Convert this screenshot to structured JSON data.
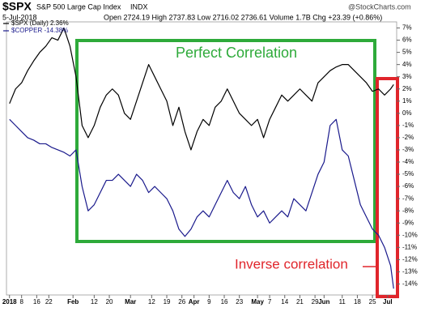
{
  "chart_data": {
    "type": "line",
    "symbol": "$SPX",
    "name": "S&P 500 Large Cap Index",
    "exchange": "INDX",
    "date": "5-Jul-2018",
    "quote": "Open 2724.19  High 2737.83  Low 2716.02  2736.61  Volume 1.7B  Chg +23.39 (+0.86%)",
    "watermark": "@StockCharts.com",
    "annotations": [
      "Perfect Correlation",
      "Inverse correlation"
    ],
    "x": [
      0,
      2,
      4,
      6,
      8,
      10,
      12,
      14,
      16,
      18,
      20,
      22,
      24,
      26,
      28,
      30,
      32,
      34,
      36,
      38,
      40,
      42,
      44,
      46,
      48,
      50,
      52,
      54,
      56,
      58,
      60,
      62,
      64,
      66,
      68,
      70,
      72,
      74,
      76,
      78,
      80,
      82,
      84,
      86,
      88,
      90,
      92,
      94,
      96,
      98,
      100,
      102,
      104,
      106,
      108,
      110,
      112,
      114,
      116,
      118,
      120,
      122,
      124,
      126,
      127
    ],
    "series": [
      {
        "name": "$SPX (Daily) 2.36%",
        "color": "#000000",
        "values": [
          0.8,
          2.0,
          2.5,
          3.5,
          4.3,
          5.0,
          5.5,
          6.2,
          6.0,
          7.0,
          5.5,
          3.0,
          -1.0,
          -2.0,
          -1.0,
          0.5,
          1.5,
          2.0,
          1.5,
          0.0,
          -0.5,
          1.0,
          2.5,
          4.0,
          3.0,
          2.0,
          1.0,
          -1.0,
          0.5,
          -1.5,
          -3.0,
          -1.5,
          -0.5,
          -1.0,
          0.5,
          1.0,
          2.0,
          1.0,
          0.0,
          -0.5,
          -1.0,
          -0.5,
          -2.0,
          -0.5,
          0.5,
          1.5,
          1.0,
          1.5,
          2.0,
          1.5,
          1.0,
          2.5,
          3.0,
          3.5,
          3.8,
          4.0,
          4.0,
          3.5,
          3.0,
          2.5,
          1.8,
          2.0,
          1.5,
          2.0,
          2.36
        ]
      },
      {
        "name": "$COPPER -14.38%",
        "color": "#1a1a8c",
        "values": [
          -0.5,
          -1.0,
          -1.5,
          -2.0,
          -2.2,
          -2.5,
          -2.5,
          -2.8,
          -3.0,
          -3.2,
          -3.5,
          -3.0,
          -6.0,
          -8.0,
          -7.5,
          -6.5,
          -5.5,
          -5.5,
          -5.0,
          -5.5,
          -6.0,
          -5.0,
          -5.5,
          -6.5,
          -6.0,
          -6.5,
          -7.0,
          -8.0,
          -9.5,
          -10.1,
          -9.5,
          -8.5,
          -8.0,
          -8.5,
          -7.5,
          -6.5,
          -5.5,
          -6.5,
          -7.0,
          -6.0,
          -7.5,
          -8.5,
          -8.0,
          -9.0,
          -8.5,
          -8.0,
          -8.5,
          -7.0,
          -7.5,
          -8.0,
          -6.5,
          -5.0,
          -4.0,
          -1.0,
          -0.5,
          -3.0,
          -3.5,
          -5.5,
          -7.5,
          -8.5,
          -9.5,
          -10.0,
          -11.0,
          -12.5,
          -14.38
        ]
      }
    ],
    "xlim": [
      -1,
      128
    ],
    "xticks": [
      {
        "value": 0,
        "label": "2018"
      },
      {
        "value": 4,
        "label": "8"
      },
      {
        "value": 9,
        "label": "16"
      },
      {
        "value": 13,
        "label": "22"
      },
      {
        "value": 21,
        "label": "Feb"
      },
      {
        "value": 28,
        "label": "12"
      },
      {
        "value": 33,
        "label": "20"
      },
      {
        "value": 40,
        "label": "Mar"
      },
      {
        "value": 47,
        "label": "12"
      },
      {
        "value": 52,
        "label": "19"
      },
      {
        "value": 57,
        "label": "26"
      },
      {
        "value": 61,
        "label": "Apr"
      },
      {
        "value": 66,
        "label": "9"
      },
      {
        "value": 71,
        "label": "16"
      },
      {
        "value": 76,
        "label": "23"
      },
      {
        "value": 82,
        "label": "May"
      },
      {
        "value": 86,
        "label": "7"
      },
      {
        "value": 91,
        "label": "14"
      },
      {
        "value": 96,
        "label": "21"
      },
      {
        "value": 101,
        "label": "29"
      },
      {
        "value": 104,
        "label": "Jun"
      },
      {
        "value": 110,
        "label": "11"
      },
      {
        "value": 115,
        "label": "18"
      },
      {
        "value": 120,
        "label": "25"
      },
      {
        "value": 125,
        "label": "Jul"
      }
    ],
    "ylim": [
      -14.9,
      7.5
    ],
    "yticks": [
      {
        "value": 7,
        "label": "7%"
      },
      {
        "value": 6,
        "label": "6%"
      },
      {
        "value": 5,
        "label": "5%"
      },
      {
        "value": 4,
        "label": "4%"
      },
      {
        "value": 3,
        "label": "3%"
      },
      {
        "value": 2,
        "label": "2%"
      },
      {
        "value": 1,
        "label": "1%"
      },
      {
        "value": 0,
        "label": "0%"
      },
      {
        "value": -1,
        "label": "-1%"
      },
      {
        "value": -2,
        "label": "-2%"
      },
      {
        "value": -3,
        "label": "-3%"
      },
      {
        "value": -4,
        "label": "-4%"
      },
      {
        "value": -5,
        "label": "-5%"
      },
      {
        "value": -6,
        "label": "-6%"
      },
      {
        "value": -7,
        "label": "-7%"
      },
      {
        "value": -8,
        "label": "-8%"
      },
      {
        "value": -9,
        "label": "-9%"
      },
      {
        "value": -10,
        "label": "-10%"
      },
      {
        "value": -11,
        "label": "-11%"
      },
      {
        "value": -12,
        "label": "-12%"
      },
      {
        "value": -13,
        "label": "-13%"
      },
      {
        "value": -14,
        "label": "-14%"
      }
    ],
    "grid": false
  }
}
